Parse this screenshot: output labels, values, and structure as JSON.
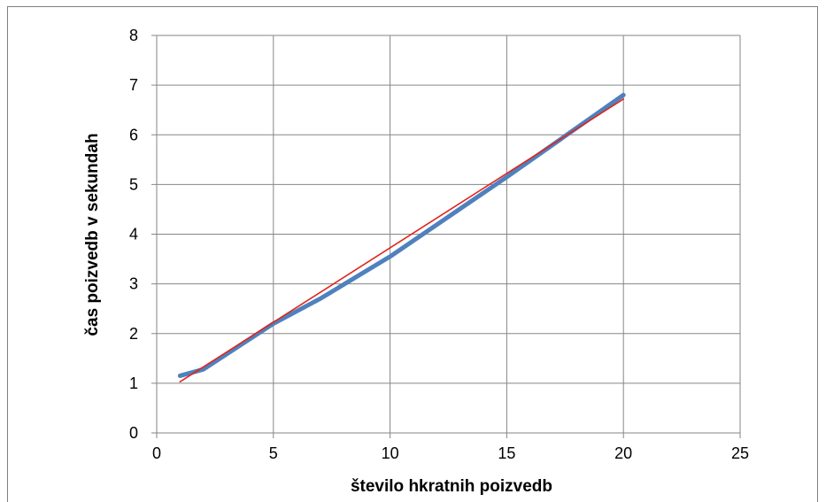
{
  "chart_data": {
    "type": "line",
    "title": "",
    "xlabel": "število hkratnih poizvedb",
    "ylabel": "čas poizvedb v sekundah",
    "xlim": [
      0,
      25
    ],
    "ylim": [
      0,
      8
    ],
    "x_ticks": [
      0,
      5,
      10,
      15,
      20,
      25
    ],
    "y_ticks": [
      0,
      1,
      2,
      3,
      4,
      5,
      6,
      7,
      8
    ],
    "grid": true,
    "legend": "none",
    "series": [
      {
        "color": "#4f81bd",
        "x": [
          1,
          2,
          5,
          7,
          10,
          15,
          20
        ],
        "y": [
          1.15,
          1.28,
          2.2,
          2.7,
          3.55,
          5.15,
          6.8
        ]
      },
      {
        "color": "#e2231a",
        "x": [
          1,
          20
        ],
        "y": [
          1.03,
          6.72
        ]
      }
    ]
  }
}
